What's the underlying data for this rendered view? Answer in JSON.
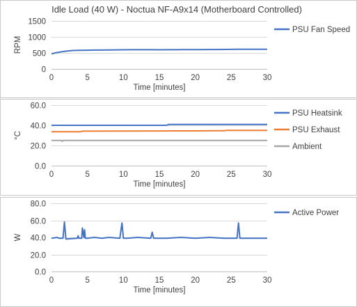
{
  "chart_data": [
    {
      "type": "line",
      "title": "Idle Load (40 W) - Noctua NF-A9x14 (Motherboard Controlled)",
      "xlabel": "Time [minutes]",
      "ylabel": "RPM",
      "xlim": [
        0,
        30
      ],
      "ylim": [
        0,
        1500
      ],
      "xticks": [
        "0",
        "5",
        "10",
        "15",
        "20",
        "25",
        "30"
      ],
      "yticks": [
        "0",
        "500",
        "1000",
        "1500"
      ],
      "grid": true,
      "legend_position": "right",
      "series": [
        {
          "name": "PSU Fan Speed",
          "color": "#4472c4",
          "x": [
            0,
            0.5,
            1,
            1.5,
            2,
            2.5,
            3,
            4,
            5,
            6,
            7,
            8,
            9,
            10,
            11,
            12,
            13,
            14,
            15,
            16,
            17,
            18,
            19,
            20,
            21,
            22,
            23,
            24,
            25,
            26,
            27,
            28,
            29,
            30
          ],
          "y": [
            470,
            500,
            520,
            540,
            555,
            565,
            575,
            580,
            585,
            590,
            590,
            592,
            595,
            598,
            600,
            600,
            600,
            600,
            598,
            600,
            600,
            602,
            603,
            605,
            605,
            606,
            607,
            608,
            610,
            612,
            612,
            614,
            615,
            615
          ]
        }
      ]
    },
    {
      "type": "line",
      "title": "",
      "xlabel": "Time [minutes]",
      "ylabel": "°C",
      "xlim": [
        0,
        30
      ],
      "ylim": [
        0,
        60
      ],
      "xticks": [
        "0",
        "5",
        "10",
        "15",
        "20",
        "25",
        "30"
      ],
      "yticks": [
        "0.0",
        "20.0",
        "40.0",
        "60.0"
      ],
      "grid": true,
      "legend_position": "right",
      "series": [
        {
          "name": "PSU Heatsink",
          "color": "#4472c4",
          "x": [
            0,
            5,
            10,
            15,
            16,
            16.3,
            20,
            25,
            30
          ],
          "y": [
            40,
            40,
            40,
            40,
            40,
            40.8,
            40.8,
            40.8,
            40.8
          ]
        },
        {
          "name": "PSU Exhaust",
          "color": "#ed7d31",
          "x": [
            0,
            4,
            4.3,
            10,
            15,
            20,
            24,
            24.3,
            30
          ],
          "y": [
            33.6,
            33.6,
            34.2,
            34.3,
            34.4,
            34.5,
            34.6,
            35,
            35
          ]
        },
        {
          "name": "Ambient",
          "color": "#a5a5a5",
          "x": [
            0,
            1.4,
            1.5,
            1.6,
            5,
            10,
            15,
            20,
            25,
            30
          ],
          "y": [
            25,
            25,
            24,
            25,
            25,
            25,
            25,
            25,
            25,
            25
          ]
        }
      ]
    },
    {
      "type": "line",
      "title": "",
      "xlabel": "Time [minutes]",
      "ylabel": "W",
      "xlim": [
        0,
        30
      ],
      "ylim": [
        0,
        80
      ],
      "xticks": [
        "0",
        "5",
        "10",
        "15",
        "20",
        "25",
        "30"
      ],
      "yticks": [
        "0.0",
        "20.0",
        "40.0",
        "60.0",
        "80.0"
      ],
      "grid": true,
      "legend_position": "right",
      "series": [
        {
          "name": "Active Power",
          "color": "#4472c4",
          "x": [
            0,
            0.8,
            1.0,
            1.6,
            1.8,
            2.0,
            3.6,
            3.7,
            3.8,
            4.2,
            4.3,
            4.5,
            4.6,
            4.7,
            5.0,
            6,
            7,
            8,
            9.5,
            9.8,
            10.0,
            10.5,
            12,
            13.8,
            14.0,
            14.2,
            16,
            18,
            20,
            22,
            24,
            25.8,
            26.0,
            26.2,
            28,
            30
          ],
          "y": [
            39,
            40,
            39,
            39,
            58,
            38,
            39,
            42,
            39,
            39,
            51,
            40,
            49,
            39,
            39,
            40,
            39,
            40,
            39,
            57,
            39,
            39,
            40,
            39,
            46,
            39,
            39,
            40,
            39,
            40,
            39,
            39,
            57,
            39,
            39,
            39
          ]
        }
      ]
    }
  ]
}
